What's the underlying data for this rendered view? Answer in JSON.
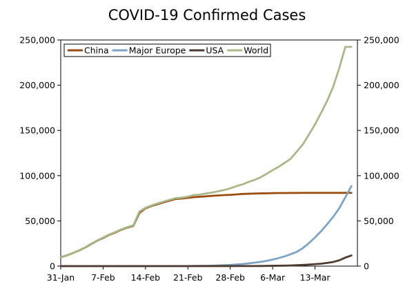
{
  "chart_data": {
    "type": "line",
    "title": "COVID-19 Confirmed Cases",
    "xlabel": "",
    "ylabel": "",
    "ylim": [
      0,
      250000
    ],
    "y_ticks": [
      0,
      50000,
      100000,
      150000,
      200000,
      250000
    ],
    "y_tick_labels": [
      "0",
      "50,000",
      "100,000",
      "150,000",
      "200,000",
      "250,000"
    ],
    "y2_tick_labels": [
      "0",
      "50,000",
      "100,000",
      "150,000",
      "200,000",
      "250,000"
    ],
    "x_ticks": [
      0,
      7,
      14,
      21,
      28,
      35,
      42
    ],
    "x_tick_labels": [
      "31-Jan",
      "7-Feb",
      "14-Feb",
      "21-Feb",
      "28-Feb",
      "6-Mar",
      "13-Mar"
    ],
    "xlim": [
      0,
      49
    ],
    "grid": false,
    "legend_position": "top",
    "series": [
      {
        "name": "China",
        "color": "#9c4a0e",
        "values": [
          9800,
          11800,
          14400,
          17200,
          20400,
          24300,
          28000,
          31100,
          34500,
          37100,
          40200,
          42600,
          44600,
          58800,
          63900,
          66500,
          68500,
          70500,
          72400,
          74200,
          74700,
          75500,
          76200,
          76700,
          77200,
          77700,
          78100,
          78500,
          78800,
          79300,
          79800,
          80000,
          80200,
          80400,
          80500,
          80700,
          80800,
          80800,
          80900,
          80900,
          81000,
          81000,
          81000,
          81000,
          81000,
          81000,
          81000,
          81000,
          81000
        ]
      },
      {
        "name": "Major Europe",
        "color": "#7ea3c4",
        "values": [
          3,
          5,
          10,
          12,
          15,
          20,
          25,
          30,
          35,
          40,
          45,
          50,
          55,
          60,
          62,
          65,
          68,
          70,
          72,
          75,
          80,
          90,
          150,
          250,
          350,
          500,
          700,
          1000,
          1300,
          1800,
          2300,
          3000,
          3800,
          4700,
          5800,
          7200,
          8900,
          10800,
          13200,
          15800,
          20000,
          25500,
          31700,
          38600,
          46300,
          54500,
          64000,
          76000,
          88500
        ]
      },
      {
        "name": "USA",
        "color": "#4e3b30",
        "values": [
          6,
          8,
          11,
          11,
          11,
          12,
          12,
          12,
          12,
          13,
          13,
          13,
          13,
          14,
          15,
          15,
          15,
          15,
          15,
          15,
          15,
          15,
          35,
          35,
          35,
          53,
          57,
          60,
          62,
          68,
          75,
          100,
          125,
          160,
          220,
          330,
          440,
          540,
          700,
          990,
          1300,
          1700,
          2200,
          2700,
          3500,
          4600,
          6400,
          9400,
          11800
        ]
      },
      {
        "name": "World",
        "color": "#a8b88a",
        "values": [
          9900,
          12000,
          14600,
          17400,
          20600,
          24600,
          28300,
          31500,
          34900,
          37600,
          40600,
          43100,
          45200,
          60400,
          64500,
          67100,
          69300,
          71300,
          73300,
          75200,
          75700,
          76800,
          78600,
          79100,
          80300,
          81400,
          82700,
          84100,
          86000,
          88400,
          90300,
          93000,
          95300,
          98200,
          102000,
          106100,
          109900,
          114200,
          118900,
          126700,
          134600,
          145600,
          156700,
          169400,
          182700,
          198400,
          218800,
          242400,
          242400
        ]
      }
    ]
  }
}
